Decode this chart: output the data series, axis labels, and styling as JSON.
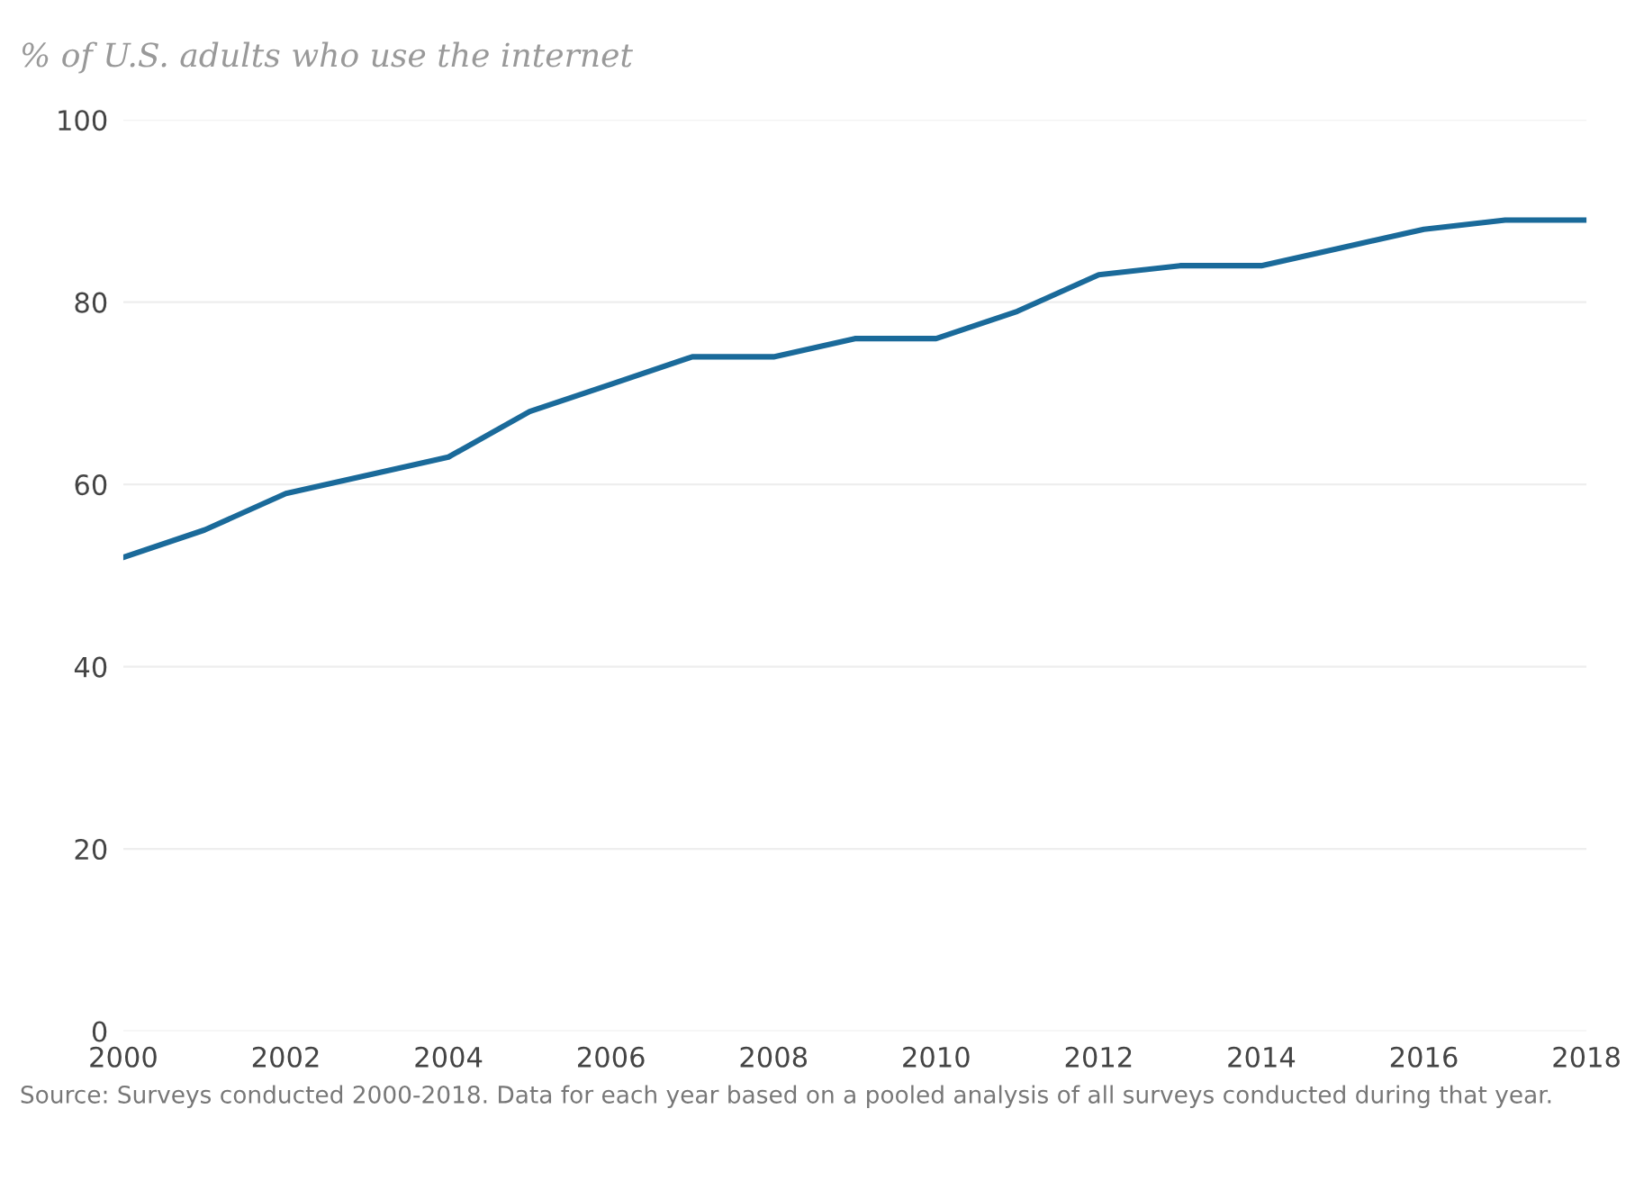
{
  "chart_data": {
    "type": "line",
    "title": "% of U.S. adults who use the internet",
    "x": [
      2000,
      2001,
      2002,
      2003,
      2004,
      2005,
      2006,
      2007,
      2008,
      2009,
      2010,
      2011,
      2012,
      2013,
      2014,
      2015,
      2016,
      2017,
      2018
    ],
    "series": [
      {
        "color": "#1a6a9a",
        "values": [
          52,
          55,
          59,
          61,
          63,
          68,
          71,
          74,
          74,
          76,
          76,
          79,
          83,
          84,
          84,
          86,
          88,
          89,
          89
        ]
      }
    ],
    "xlim": [
      2000,
      2018
    ],
    "xticks": [
      2000,
      2002,
      2004,
      2006,
      2008,
      2010,
      2012,
      2014,
      2016,
      2018
    ],
    "ylim": [
      0,
      100
    ],
    "yticks": [
      0,
      20,
      40,
      60,
      80,
      100
    ],
    "grid": "y",
    "marker": "none",
    "line_style": "solid",
    "annotations": [
      "Source: Surveys conducted 2000-2018. Data for each year based on a pooled analysis of all surveys conducted during that year."
    ]
  }
}
